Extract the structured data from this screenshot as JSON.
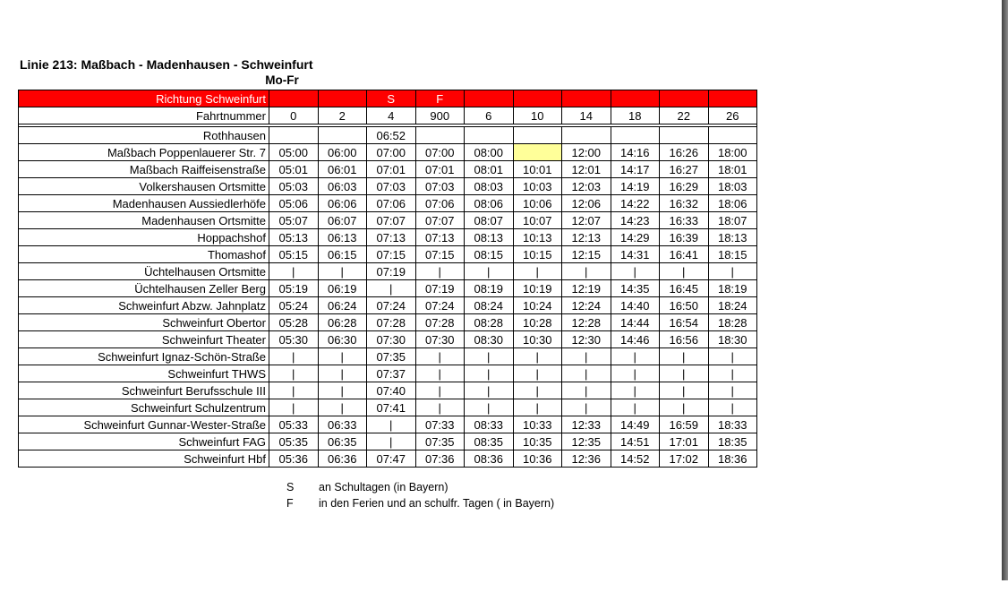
{
  "page": {
    "title": "Linie 213: Maßbach - Madenhausen - Schweinfurt",
    "subtitle": "Mo-Fr"
  },
  "table": {
    "direction_label": "Richtung Schweinfurt",
    "trip_label": "Fahrtnummer",
    "day_codes": [
      "",
      "",
      "S",
      "F",
      "",
      "",
      "",
      "",
      "",
      ""
    ],
    "trip_numbers": [
      "0",
      "2",
      "4",
      "900",
      "6",
      "10",
      "14",
      "18",
      "22",
      "26"
    ],
    "colors": {
      "header_red": "#fe0000",
      "highlight_yellow": "#ffff99"
    },
    "rows": [
      {
        "station": "Rothhausen",
        "cells": [
          "",
          "",
          "06:52",
          "",
          "",
          "",
          "",
          "",
          "",
          ""
        ],
        "styles": [
          "",
          "",
          "b",
          "",
          "",
          "",
          "",
          "",
          "",
          ""
        ]
      },
      {
        "station": "Maßbach Poppenlauerer Str. 7",
        "cells": [
          "05:00",
          "06:00",
          "07:00",
          "07:00",
          "08:00",
          "",
          "12:00",
          "14:16",
          "16:26",
          "18:00"
        ],
        "styles": [
          "b",
          "b",
          "",
          "b",
          "b",
          "y",
          "b",
          "b",
          "b",
          "b"
        ]
      },
      {
        "station": "Maßbach Raiffeisenstraße",
        "cells": [
          "05:01",
          "06:01",
          "07:01",
          "07:01",
          "08:01",
          "10:01",
          "12:01",
          "14:17",
          "16:27",
          "18:01"
        ]
      },
      {
        "station": "Volkershausen Ortsmitte",
        "cells": [
          "05:03",
          "06:03",
          "07:03",
          "07:03",
          "08:03",
          "10:03",
          "12:03",
          "14:19",
          "16:29",
          "18:03"
        ]
      },
      {
        "station": "Madenhausen Aussiedlerhöfe",
        "cells": [
          "05:06",
          "06:06",
          "07:06",
          "07:06",
          "08:06",
          "10:06",
          "12:06",
          "14:22",
          "16:32",
          "18:06"
        ]
      },
      {
        "station": "Madenhausen Ortsmitte",
        "cells": [
          "05:07",
          "06:07",
          "07:07",
          "07:07",
          "08:07",
          "10:07",
          "12:07",
          "14:23",
          "16:33",
          "18:07"
        ]
      },
      {
        "station": "Hoppachshof",
        "cells": [
          "05:13",
          "06:13",
          "07:13",
          "07:13",
          "08:13",
          "10:13",
          "12:13",
          "14:29",
          "16:39",
          "18:13"
        ]
      },
      {
        "station": "Thomashof",
        "cells": [
          "05:15",
          "06:15",
          "07:15",
          "07:15",
          "08:15",
          "10:15",
          "12:15",
          "14:31",
          "16:41",
          "18:15"
        ]
      },
      {
        "station": "Üchtelhausen Ortsmitte",
        "cells": [
          "|",
          "|",
          "07:19",
          "|",
          "|",
          "|",
          "|",
          "|",
          "|",
          "|"
        ]
      },
      {
        "station": "Üchtelhausen Zeller Berg",
        "cells": [
          "05:19",
          "06:19",
          "|",
          "07:19",
          "08:19",
          "10:19",
          "12:19",
          "14:35",
          "16:45",
          "18:19"
        ]
      },
      {
        "station": "Schweinfurt Abzw. Jahnplatz",
        "cells": [
          "05:24",
          "06:24",
          "07:24",
          "07:24",
          "08:24",
          "10:24",
          "12:24",
          "14:40",
          "16:50",
          "18:24"
        ]
      },
      {
        "station": "Schweinfurt Obertor",
        "cells": [
          "05:28",
          "06:28",
          "07:28",
          "07:28",
          "08:28",
          "10:28",
          "12:28",
          "14:44",
          "16:54",
          "18:28"
        ]
      },
      {
        "station": "Schweinfurt Theater",
        "cells": [
          "05:30",
          "06:30",
          "07:30",
          "07:30",
          "08:30",
          "10:30",
          "12:30",
          "14:46",
          "16:56",
          "18:30"
        ]
      },
      {
        "station": "Schweinfurt Ignaz-Schön-Straße",
        "cells": [
          "|",
          "|",
          "07:35",
          "|",
          "|",
          "|",
          "|",
          "|",
          "|",
          "|"
        ]
      },
      {
        "station": "Schweinfurt THWS",
        "cells": [
          "|",
          "|",
          "07:37",
          "|",
          "|",
          "|",
          "|",
          "|",
          "|",
          "|"
        ]
      },
      {
        "station": "Schweinfurt Berufsschule III",
        "cells": [
          "|",
          "|",
          "07:40",
          "|",
          "|",
          "|",
          "|",
          "|",
          "|",
          "|"
        ]
      },
      {
        "station": "Schweinfurt Schulzentrum",
        "cells": [
          "|",
          "|",
          "07:41",
          "|",
          "|",
          "|",
          "|",
          "|",
          "|",
          "|"
        ]
      },
      {
        "station": "Schweinfurt Gunnar-Wester-Straße",
        "cells": [
          "05:33",
          "06:33",
          "|",
          "07:33",
          "08:33",
          "10:33",
          "12:33",
          "14:49",
          "16:59",
          "18:33"
        ]
      },
      {
        "station": "Schweinfurt FAG",
        "cells": [
          "05:35",
          "06:35",
          "|",
          "07:35",
          "08:35",
          "10:35",
          "12:35",
          "14:51",
          "17:01",
          "18:35"
        ]
      },
      {
        "station": "Schweinfurt Hbf",
        "bold": true,
        "cells": [
          "05:36",
          "06:36",
          "07:47",
          "07:36",
          "08:36",
          "10:36",
          "12:36",
          "14:52",
          "17:02",
          "18:36"
        ]
      }
    ]
  },
  "legend": {
    "items": [
      {
        "symbol": "S",
        "text": "an Schultagen (in Bayern)"
      },
      {
        "symbol": "F",
        "text": "in den Ferien und an schulfr. Tagen ( in Bayern)"
      }
    ]
  }
}
